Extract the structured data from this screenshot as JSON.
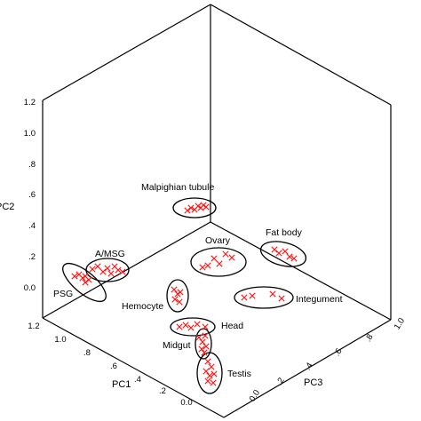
{
  "chart_data": {
    "type": "scatter",
    "subtype": "3d-pca",
    "title": "",
    "axes": {
      "pc1": {
        "label": "PC1",
        "ticks": [
          "0.0",
          ".2",
          ".4",
          ".6",
          ".8",
          "1.0",
          "1.2"
        ]
      },
      "pc2": {
        "label": "PC2",
        "ticks": [
          "0.0",
          ".2",
          ".4",
          ".6",
          ".8",
          "1.0",
          "1.2"
        ]
      },
      "pc3": {
        "label": "PC3",
        "ticks": [
          "0.0",
          ".2",
          ".4",
          ".6",
          ".8",
          "1.0"
        ]
      }
    },
    "grid": false,
    "marker": "x",
    "marker_color": "#ff1a1a",
    "clusters": [
      {
        "name": "Malpighian tubule",
        "points": 7
      },
      {
        "name": "Fat body",
        "points": 5
      },
      {
        "name": "Ovary",
        "points": 6
      },
      {
        "name": "A/MSG",
        "points": 8
      },
      {
        "name": "PSG",
        "points": 6
      },
      {
        "name": "Integument",
        "points": 4
      },
      {
        "name": "Hemocyte",
        "points": 5
      },
      {
        "name": "Head",
        "points": 5
      },
      {
        "name": "Midgut",
        "points": 6
      },
      {
        "name": "Testis",
        "points": 7
      }
    ]
  }
}
